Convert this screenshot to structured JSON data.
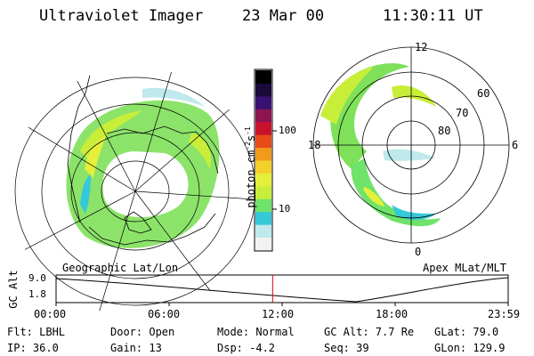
{
  "header": {
    "instrument": "Ultraviolet Imager",
    "date": "23 Mar 00",
    "time": "11:30:11 UT"
  },
  "left_panel": {
    "label": "Geographic Lat/Lon"
  },
  "right_panel": {
    "label": "Apex MLat/MLT",
    "mlt_labels": [
      "12",
      "18",
      "6",
      "0"
    ],
    "lat_labels": [
      "60",
      "70",
      "80"
    ]
  },
  "colorbar": {
    "unit_label": "photon cm",
    "unit_sup1": "-2",
    "unit_s": "s",
    "unit_sup2": "-1",
    "ticks": [
      "100",
      "10"
    ],
    "colors": [
      "#f2f2f2",
      "#bfe9ec",
      "#34c9d8",
      "#6fe36a",
      "#c8ee3a",
      "#e6f03a",
      "#f4d02a",
      "#f29a1a",
      "#e84a18",
      "#c8122c",
      "#8c1450",
      "#3a1070",
      "#180a3a",
      "#000000"
    ]
  },
  "orbit_plot": {
    "y_title": "GC Alt",
    "y_ticks": [
      "9.0",
      "1.8"
    ],
    "x_ticks": [
      "00:00",
      "06:00",
      "12:00",
      "18:00",
      "23:59"
    ],
    "current_time_fraction": 0.479,
    "marker_color": "#e0001a"
  },
  "status": {
    "filter": "Flt: LBHL",
    "door": "Door: Open",
    "mode": "Mode: Normal",
    "gc_alt": "GC Alt: 7.7 Re",
    "glat": "GLat:  79.0",
    "ip": "IP: 36.0",
    "gain": "Gain: 13",
    "dsp": "Dsp:   -4.2",
    "seq": "Seq: 39",
    "glon": "GLon: 129.9"
  }
}
